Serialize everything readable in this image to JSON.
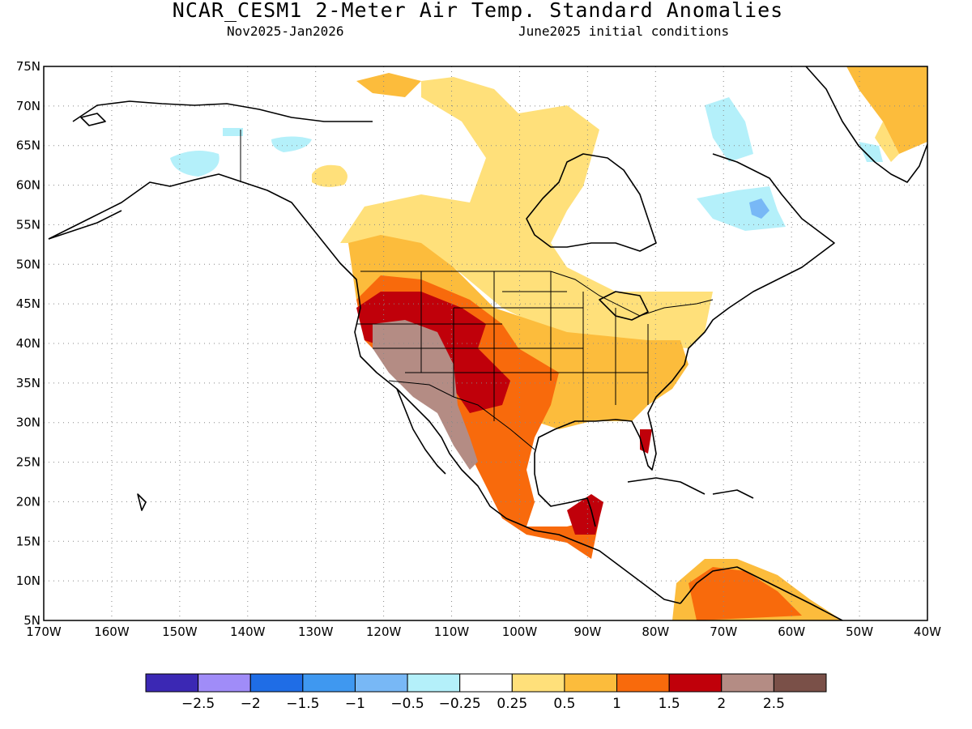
{
  "title": "NCAR_CESM1 2-Meter Air Temp. Standard Anomalies",
  "subtitle_period": "Nov2025-Jan2026",
  "subtitle_init": "June2025 initial conditions",
  "map": {
    "lon_range": [
      -170,
      -40
    ],
    "lat_range": [
      5,
      75
    ],
    "lat_ticks": [
      "75N",
      "70N",
      "65N",
      "60N",
      "55N",
      "50N",
      "45N",
      "40N",
      "35N",
      "30N",
      "25N",
      "20N",
      "15N",
      "10N",
      "5N"
    ],
    "lon_ticks": [
      "170W",
      "160W",
      "150W",
      "140W",
      "130W",
      "120W",
      "110W",
      "100W",
      "90W",
      "80W",
      "70W",
      "60W",
      "50W",
      "40W"
    ],
    "grid": "dotted"
  },
  "colorbar": {
    "colors": [
      "#3b28b4",
      "#a08cf8",
      "#1f6de6",
      "#3f98f0",
      "#78b8f6",
      "#b4f0fa",
      "#ffffff",
      "#ffe07a",
      "#fcbc3c",
      "#f86a0c",
      "#c0000a",
      "#b48c84",
      "#7a5048"
    ],
    "labels": [
      "-2.5",
      "-2",
      "-1.5",
      "-1",
      "-0.5",
      "-0.25",
      "0.25",
      "0.5",
      "1",
      "1.5",
      "2",
      "2.5"
    ]
  }
}
